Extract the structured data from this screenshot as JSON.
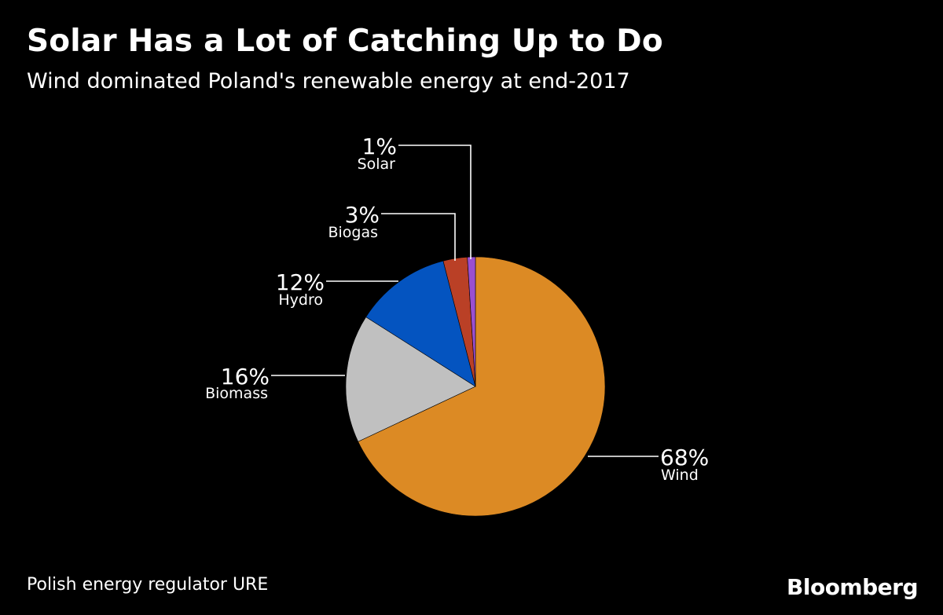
{
  "header": {
    "title": "Solar Has a Lot of Catching Up to Do",
    "subtitle": "Wind dominated Poland's renewable energy at end-2017"
  },
  "footer": {
    "source": "Polish energy regulator URE",
    "brand": "Bloomberg"
  },
  "chart_data": {
    "type": "pie",
    "title": "Solar Has a Lot of Catching Up to Do",
    "subtitle": "Wind dominated Poland's renewable energy at end-2017",
    "start_angle_deg": 0,
    "direction": "clockwise",
    "slices": [
      {
        "label": "Wind",
        "value": 68,
        "value_label": "68%",
        "color": "#DC8A24"
      },
      {
        "label": "Biomass",
        "value": 16,
        "value_label": "16%",
        "color": "#C0C0C0"
      },
      {
        "label": "Hydro",
        "value": 12,
        "value_label": "12%",
        "color": "#0454C0"
      },
      {
        "label": "Biogas",
        "value": 3,
        "value_label": "3%",
        "color": "#BA4026"
      },
      {
        "label": "Solar",
        "value": 1,
        "value_label": "1%",
        "color": "#9A4FD0"
      }
    ],
    "leader_line_color": "#FFFFFF",
    "legend": "none"
  }
}
